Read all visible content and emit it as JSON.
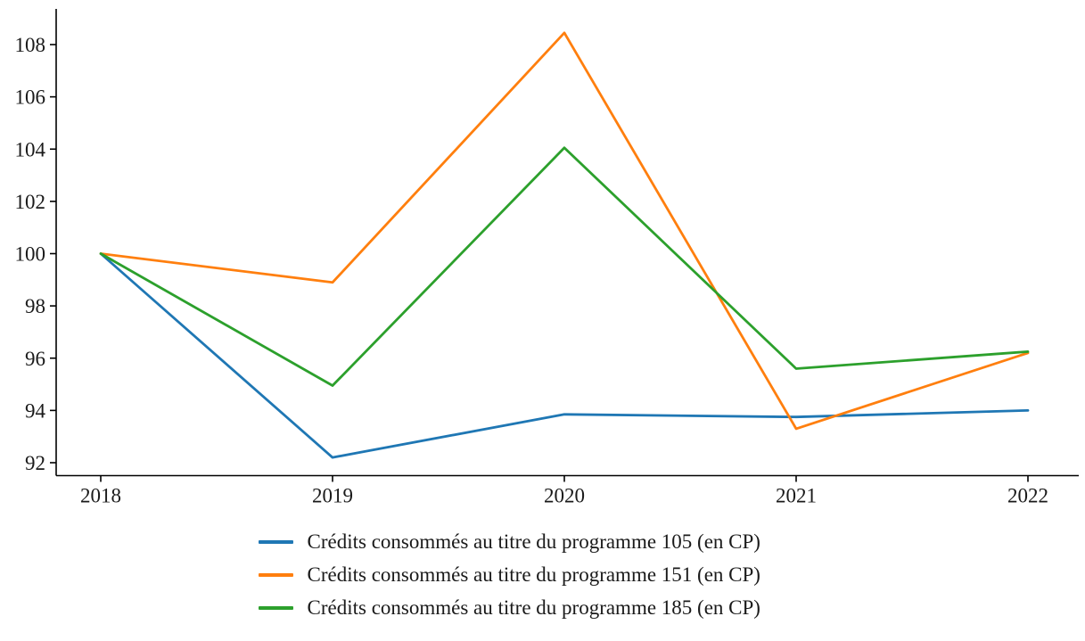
{
  "chart_data": {
    "type": "line",
    "title": "",
    "xlabel": "",
    "ylabel": "",
    "x": [
      2018,
      2019,
      2020,
      2021,
      2022
    ],
    "xticks": [
      "2018",
      "2019",
      "2020",
      "2021",
      "2022"
    ],
    "yticks": [
      "92",
      "94",
      "96",
      "98",
      "100",
      "102",
      "104",
      "106",
      "108"
    ],
    "ytick_values": [
      92,
      94,
      96,
      98,
      100,
      102,
      104,
      106,
      108
    ],
    "ylim": [
      91.5,
      109.4
    ],
    "grid": false,
    "legend_position": "bottom",
    "axis_color": "#000000",
    "text_color": "#1a1a1a",
    "series": [
      {
        "name": "Crédits consommés au titre du programme 105 (en CP)",
        "color": "#1f77b4",
        "values": [
          100,
          92.2,
          93.85,
          93.75,
          94.0
        ]
      },
      {
        "name": "Crédits consommés au titre du programme 151 (en CP)",
        "color": "#ff7f0e",
        "values": [
          100,
          98.9,
          108.45,
          93.3,
          96.2
        ]
      },
      {
        "name": "Crédits consommés au titre du programme 185 (en CP)",
        "color": "#2ca02c",
        "values": [
          100,
          94.95,
          104.05,
          95.6,
          96.25
        ]
      }
    ]
  }
}
